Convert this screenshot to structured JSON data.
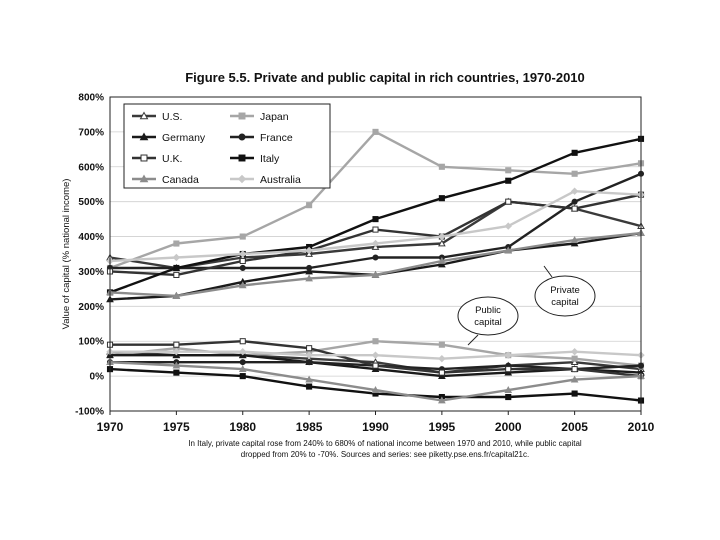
{
  "chart_data": {
    "type": "line",
    "title": "Figure 5.5. Private and public capital in rich countries, 1970-2010",
    "ylabel": "Value of capital (% national income)",
    "xlabel": "",
    "xlim": [
      1970,
      2010
    ],
    "ylim": [
      -100,
      800
    ],
    "xticks": [
      "1970",
      "1975",
      "1980",
      "1985",
      "1990",
      "1995",
      "2000",
      "2005",
      "2010"
    ],
    "yticks": [
      "-100%",
      "0%",
      "100%",
      "200%",
      "300%",
      "400%",
      "500%",
      "600%",
      "700%",
      "800%"
    ],
    "grid": "horizontal",
    "legend": "top-left",
    "years": [
      1970,
      1975,
      1980,
      1985,
      1990,
      1995,
      2000,
      2005,
      2010
    ],
    "series": [
      {
        "name": "U.S.",
        "color": "#3a3a3a",
        "marker": "open-triangle",
        "private": [
          340,
          310,
          340,
          350,
          370,
          380,
          500,
          480,
          430
        ],
        "public": [
          70,
          60,
          60,
          50,
          40,
          10,
          30,
          40,
          20
        ]
      },
      {
        "name": "Japan",
        "color": "#a6a6a6",
        "marker": "square",
        "private": [
          310,
          380,
          400,
          490,
          700,
          600,
          590,
          580,
          610
        ],
        "public": [
          60,
          80,
          60,
          70,
          100,
          90,
          60,
          50,
          30
        ]
      },
      {
        "name": "Germany",
        "color": "#1a1a1a",
        "marker": "triangle",
        "private": [
          220,
          230,
          270,
          300,
          290,
          320,
          360,
          380,
          410
        ],
        "public": [
          60,
          60,
          60,
          40,
          20,
          0,
          10,
          20,
          10
        ]
      },
      {
        "name": "France",
        "color": "#222222",
        "marker": "circle",
        "private": [
          310,
          310,
          310,
          310,
          340,
          340,
          370,
          500,
          580
        ],
        "public": [
          40,
          40,
          40,
          40,
          30,
          20,
          30,
          20,
          30
        ]
      },
      {
        "name": "U.K.",
        "color": "#333333",
        "marker": "open-square",
        "private": [
          300,
          290,
          330,
          360,
          420,
          400,
          500,
          480,
          520
        ],
        "public": [
          90,
          90,
          100,
          80,
          30,
          10,
          20,
          20,
          0
        ]
      },
      {
        "name": "Italy",
        "color": "#111111",
        "marker": "square",
        "private": [
          240,
          310,
          350,
          370,
          450,
          510,
          560,
          640,
          680
        ],
        "public": [
          20,
          10,
          0,
          -30,
          -50,
          -60,
          -60,
          -50,
          -70
        ]
      },
      {
        "name": "Canada",
        "color": "#8c8c8c",
        "marker": "triangle",
        "private": [
          240,
          230,
          260,
          280,
          290,
          330,
          360,
          390,
          410
        ],
        "public": [
          40,
          30,
          20,
          -10,
          -40,
          -70,
          -40,
          -10,
          0
        ]
      },
      {
        "name": "Australia",
        "color": "#c8c8c8",
        "marker": "diamond",
        "private": [
          330,
          340,
          350,
          360,
          380,
          400,
          430,
          530,
          520
        ],
        "public": [
          70,
          70,
          70,
          60,
          60,
          50,
          60,
          70,
          60
        ]
      }
    ],
    "annotations": {
      "public_label_line1": "Public",
      "public_label_line2": "capital",
      "private_label_line1": "Private",
      "private_label_line2": "capital"
    },
    "caption_line1": "In Italy, private capital rose from 240% to 680% of national income between 1970 and 2010, while public capital",
    "caption_line2": "dropped from 20% to -70%. Sources and series:  see piketty.pse.ens.fr/capital21c."
  }
}
